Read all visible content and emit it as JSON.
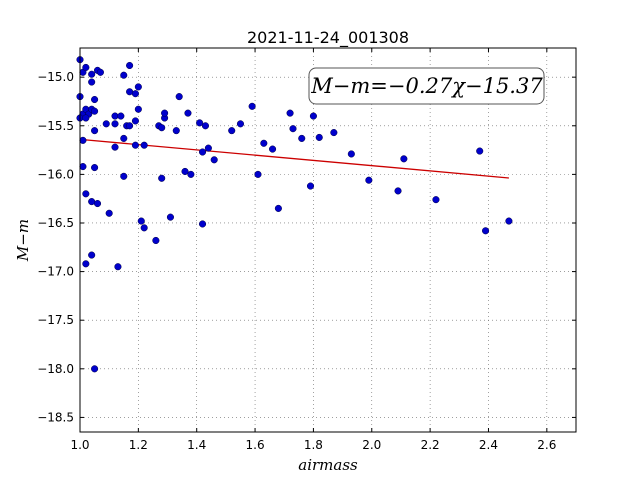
{
  "chart_data": {
    "type": "scatter",
    "title": "2021-11-24_001308",
    "xlabel": "airmass",
    "ylabel": "M−m",
    "xlim": [
      1.0,
      2.7
    ],
    "ylim": [
      -18.65,
      -14.7
    ],
    "y_inverted": true,
    "grid": true,
    "x_ticks": [
      1.0,
      1.2,
      1.4,
      1.6,
      1.8,
      2.0,
      2.2,
      2.4,
      2.6
    ],
    "x_tick_labels": [
      "1.0",
      "1.2",
      "1.4",
      "1.6",
      "1.8",
      "2.0",
      "2.2",
      "2.4",
      "2.6"
    ],
    "y_ticks": [
      -15.0,
      -15.5,
      -16.0,
      -16.5,
      -17.0,
      -17.5,
      -18.0,
      -18.5
    ],
    "y_tick_labels": [
      "−15.0",
      "−15.5",
      "−16.0",
      "−16.5",
      "−17.0",
      "−17.5",
      "−18.0",
      "−18.5"
    ],
    "annotation": "M−m=−0.27χ−15.37",
    "point_color": "#0000cc",
    "fit_color": "#cc0000",
    "points": [
      [
        1.0,
        -14.82
      ],
      [
        1.01,
        -14.95
      ],
      [
        1.02,
        -14.9
      ],
      [
        1.04,
        -14.97
      ],
      [
        1.04,
        -15.05
      ],
      [
        1.06,
        -14.93
      ],
      [
        1.07,
        -14.95
      ],
      [
        1.0,
        -15.2
      ],
      [
        1.05,
        -15.23
      ],
      [
        1.01,
        -15.38
      ],
      [
        1.02,
        -15.33
      ],
      [
        1.03,
        -15.38
      ],
      [
        1.04,
        -15.33
      ],
      [
        1.05,
        -15.35
      ],
      [
        1.0,
        -15.42
      ],
      [
        1.02,
        -15.42
      ],
      [
        1.05,
        -15.55
      ],
      [
        1.09,
        -15.48
      ],
      [
        1.12,
        -15.4
      ],
      [
        1.14,
        -15.4
      ],
      [
        1.12,
        -15.48
      ],
      [
        1.16,
        -15.5
      ],
      [
        1.01,
        -15.65
      ],
      [
        1.12,
        -15.72
      ],
      [
        1.15,
        -15.63
      ],
      [
        1.19,
        -15.7
      ],
      [
        1.22,
        -15.7
      ],
      [
        1.15,
        -14.98
      ],
      [
        1.17,
        -14.88
      ],
      [
        1.17,
        -15.15
      ],
      [
        1.19,
        -15.17
      ],
      [
        1.2,
        -15.1
      ],
      [
        1.2,
        -15.33
      ],
      [
        1.19,
        -15.45
      ],
      [
        1.17,
        -15.5
      ],
      [
        1.01,
        -15.92
      ],
      [
        1.05,
        -15.93
      ],
      [
        1.15,
        -16.02
      ],
      [
        1.02,
        -16.2
      ],
      [
        1.04,
        -16.28
      ],
      [
        1.06,
        -16.3
      ],
      [
        1.1,
        -16.4
      ],
      [
        1.21,
        -16.48
      ],
      [
        1.22,
        -16.55
      ],
      [
        1.26,
        -16.68
      ],
      [
        1.04,
        -16.83
      ],
      [
        1.02,
        -16.92
      ],
      [
        1.13,
        -16.95
      ],
      [
        1.05,
        -18.0
      ],
      [
        1.27,
        -15.5
      ],
      [
        1.28,
        -15.52
      ],
      [
        1.29,
        -15.42
      ],
      [
        1.29,
        -15.37
      ],
      [
        1.33,
        -15.55
      ],
      [
        1.34,
        -15.2
      ],
      [
        1.37,
        -15.37
      ],
      [
        1.41,
        -15.47
      ],
      [
        1.43,
        -15.5
      ],
      [
        1.28,
        -16.04
      ],
      [
        1.31,
        -16.44
      ],
      [
        1.36,
        -15.97
      ],
      [
        1.38,
        -16.0
      ],
      [
        1.42,
        -15.77
      ],
      [
        1.44,
        -15.73
      ],
      [
        1.46,
        -15.85
      ],
      [
        1.42,
        -16.51
      ],
      [
        1.52,
        -15.55
      ],
      [
        1.55,
        -15.48
      ],
      [
        1.59,
        -15.3
      ],
      [
        1.61,
        -16.0
      ],
      [
        1.63,
        -15.68
      ],
      [
        1.66,
        -15.74
      ],
      [
        1.68,
        -16.35
      ],
      [
        1.72,
        -15.37
      ],
      [
        1.73,
        -15.53
      ],
      [
        1.76,
        -15.63
      ],
      [
        1.79,
        -16.12
      ],
      [
        1.8,
        -15.4
      ],
      [
        1.82,
        -15.62
      ],
      [
        1.87,
        -15.57
      ],
      [
        1.93,
        -15.79
      ],
      [
        1.99,
        -16.06
      ],
      [
        2.09,
        -16.17
      ],
      [
        2.11,
        -15.84
      ],
      [
        2.22,
        -16.26
      ],
      [
        2.37,
        -15.76
      ],
      [
        2.39,
        -16.58
      ],
      [
        2.47,
        -16.48
      ]
    ],
    "fit_line": {
      "slope": -0.27,
      "intercept": -15.37,
      "x_range": [
        1.0,
        2.47
      ]
    }
  }
}
